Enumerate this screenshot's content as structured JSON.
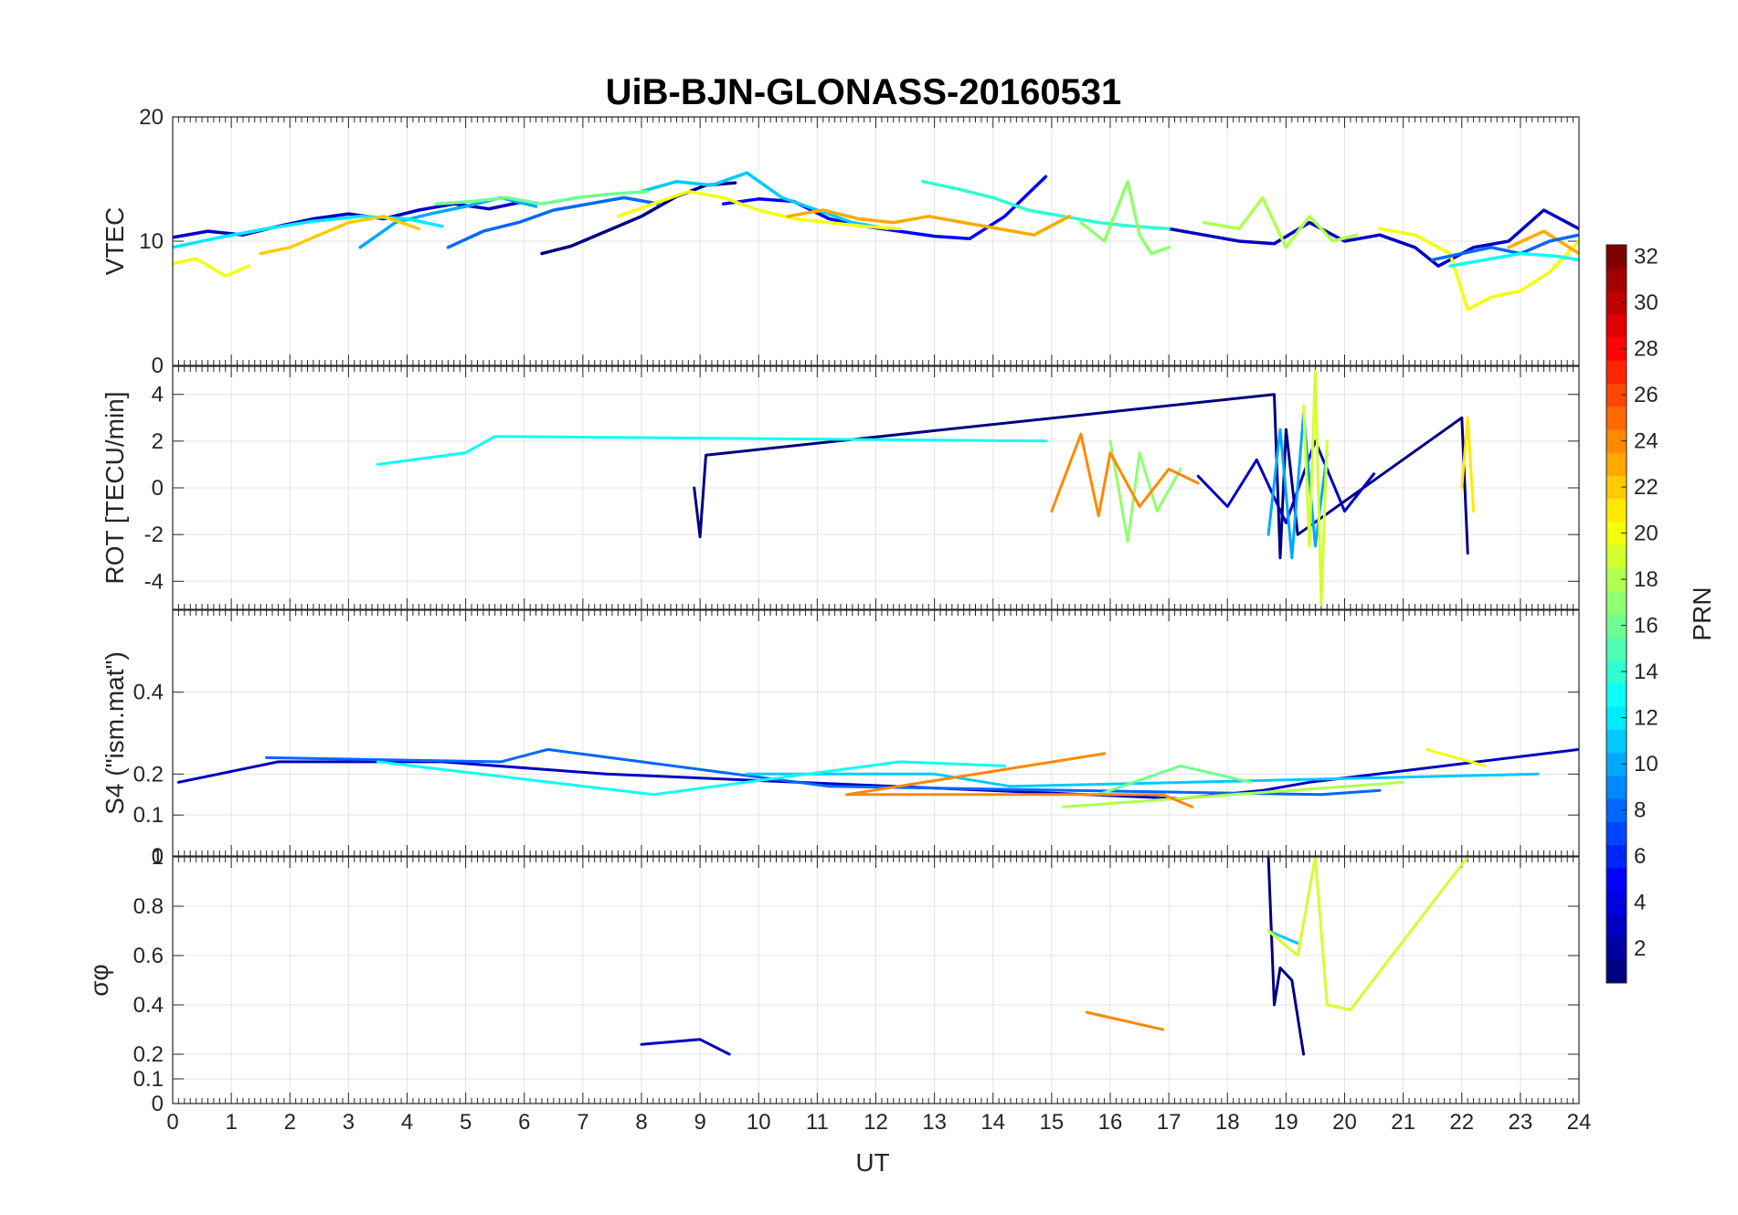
{
  "chart_data": {
    "type": "line",
    "title": "UiB-BJN-GLONASS-20160531",
    "xlabel": "UT",
    "xlim": [
      0,
      24
    ],
    "xticks": [
      "0",
      "1",
      "2",
      "3",
      "4",
      "5",
      "6",
      "7",
      "8",
      "9",
      "10",
      "11",
      "12",
      "13",
      "14",
      "15",
      "16",
      "17",
      "18",
      "19",
      "20",
      "21",
      "22",
      "23",
      "24"
    ],
    "grid": true,
    "panels": [
      {
        "ylabel": "VTEC",
        "ylim": [
          0,
          20
        ],
        "yticks": [
          "0",
          "10",
          "20"
        ],
        "series": [
          {
            "prn": 1,
            "x": [
              6.3,
              6.8,
              7.4,
              8.0,
              8.6,
              9.1,
              9.6
            ],
            "y": [
              9.0,
              9.6,
              10.8,
              12.0,
              13.6,
              14.5,
              14.7
            ]
          },
          {
            "prn": 3,
            "x": [
              0,
              0.6,
              1.2,
              1.8,
              2.4,
              3.0,
              3.6,
              4.2,
              4.8,
              5.4,
              6.0
            ],
            "y": [
              10.3,
              10.8,
              10.5,
              11.2,
              11.8,
              12.2,
              11.8,
              12.5,
              13.0,
              12.6,
              13.2
            ]
          },
          {
            "prn": 3,
            "x": [
              17.0,
              17.6,
              18.2,
              18.8,
              19.4,
              20.0,
              20.6,
              21.2,
              21.6,
              22.2,
              22.8,
              23.4,
              24.0
            ],
            "y": [
              11.0,
              10.5,
              10.0,
              9.8,
              11.5,
              10.0,
              10.5,
              9.5,
              8.0,
              9.5,
              10.0,
              12.5,
              11.0
            ]
          },
          {
            "prn": 5,
            "x": [
              9.4,
              10.0,
              10.6,
              11.2,
              11.8,
              12.4,
              13.0,
              13.6,
              14.2,
              14.9
            ],
            "y": [
              13.0,
              13.4,
              13.2,
              11.8,
              11.2,
              10.8,
              10.4,
              10.2,
              12.0,
              15.2
            ]
          },
          {
            "prn": 8,
            "x": [
              4.7,
              5.3,
              5.9,
              6.5,
              7.1,
              7.7,
              8.3
            ],
            "y": [
              9.5,
              10.8,
              11.5,
              12.5,
              13.0,
              13.5,
              13.0
            ]
          },
          {
            "prn": 10,
            "x": [
              3.2,
              3.8,
              4.4,
              5.0,
              5.6,
              6.2
            ],
            "y": [
              9.5,
              11.5,
              12.2,
              12.8,
              13.5,
              12.8
            ]
          },
          {
            "prn": 11,
            "x": [
              8.0,
              8.6,
              9.2,
              9.8,
              10.4,
              11.0,
              11.6,
              12.2
            ],
            "y": [
              14.0,
              14.8,
              14.5,
              15.5,
              13.5,
              12.5,
              11.5,
              11.0
            ]
          },
          {
            "prn": 12,
            "x": [
              0,
              0.8,
              1.6,
              2.4,
              3.2,
              4.0,
              4.6
            ],
            "y": [
              9.5,
              10.3,
              11.0,
              11.6,
              12.0,
              11.8,
              11.2
            ]
          },
          {
            "prn": 14,
            "x": [
              12.8,
              13.4,
              14.0,
              14.6,
              15.2,
              15.8,
              16.4,
              17.0
            ],
            "y": [
              14.8,
              14.2,
              13.5,
              12.5,
              12.0,
              11.5,
              11.2,
              11.0
            ]
          },
          {
            "prn": 16,
            "x": [
              4.5,
              5.1,
              5.7,
              6.3,
              6.9,
              7.5,
              8.1
            ],
            "y": [
              13.0,
              13.2,
              13.5,
              13.0,
              13.5,
              13.8,
              14.0
            ]
          },
          {
            "prn": 17,
            "x": [
              15.5,
              15.9,
              16.3,
              16.5,
              16.7,
              17.0
            ],
            "y": [
              11.5,
              10.0,
              14.8,
              10.5,
              9.0,
              9.5
            ]
          },
          {
            "prn": 18,
            "x": [
              17.6,
              18.2,
              18.6,
              19.0,
              19.4,
              19.8,
              20.2
            ],
            "y": [
              11.5,
              11.0,
              13.5,
              9.5,
              12.0,
              10.0,
              10.5
            ]
          },
          {
            "prn": 20,
            "x": [
              0,
              0.4,
              0.9,
              1.3
            ],
            "y": [
              8.2,
              8.6,
              7.2,
              8.0
            ]
          },
          {
            "prn": 20,
            "x": [
              7.6,
              8.2,
              8.8,
              9.4,
              10.0,
              10.6,
              11.2,
              11.8,
              12.4
            ],
            "y": [
              12.0,
              13.0,
              14.0,
              13.5,
              12.5,
              11.8,
              11.5,
              11.2,
              11.0
            ]
          },
          {
            "prn": 20,
            "x": [
              20.6,
              21.2,
              21.8,
              22.1,
              22.5,
              23.0,
              23.5,
              24.0
            ],
            "y": [
              11.0,
              10.5,
              9.0,
              4.5,
              5.5,
              6.0,
              7.5,
              10.0
            ]
          },
          {
            "prn": 22,
            "x": [
              1.5,
              2.0,
              2.5,
              3.0,
              3.6,
              4.2
            ],
            "y": [
              9.0,
              9.5,
              10.5,
              11.5,
              12.0,
              11.0
            ]
          },
          {
            "prn": 23,
            "x": [
              10.5,
              11.1,
              11.7,
              12.3,
              12.9,
              13.5,
              14.1,
              14.7,
              15.3
            ],
            "y": [
              12.0,
              12.5,
              11.8,
              11.5,
              12.0,
              11.5,
              11.0,
              10.5,
              12.0
            ]
          },
          {
            "prn": 23,
            "x": [
              22.8,
              23.4,
              24.0
            ],
            "y": [
              9.5,
              10.8,
              9.0
            ]
          },
          {
            "prn": 8,
            "x": [
              21.5,
              22.0,
              22.5,
              23.0,
              23.5,
              24.0
            ],
            "y": [
              8.5,
              9.0,
              9.5,
              9.0,
              10.0,
              10.5
            ]
          },
          {
            "prn": 13,
            "x": [
              21.8,
              22.4,
              23.0,
              23.6,
              24.0
            ],
            "y": [
              8.0,
              8.5,
              9.0,
              8.8,
              8.5
            ]
          }
        ]
      },
      {
        "ylabel": "ROT [TECU/min]",
        "ylim": [
          -5.2,
          5.2
        ],
        "yticks": [
          "-4",
          "-2",
          "0",
          "2",
          "4"
        ],
        "series": [
          {
            "prn": 1,
            "x": [
              8.9,
              9.0,
              9.1,
              18.8,
              18.9,
              19.0,
              19.2,
              22.0,
              22.1
            ],
            "y": [
              0,
              -2.1,
              1.4,
              4.0,
              -3.0,
              2.5,
              -2.0,
              3.0,
              -2.8
            ]
          },
          {
            "prn": 3,
            "x": [
              17.5,
              18.0,
              18.5,
              19.0,
              19.5,
              20.0,
              20.5
            ],
            "y": [
              0.5,
              -0.8,
              1.2,
              -1.5,
              2.0,
              -1.0,
              0.6
            ]
          },
          {
            "prn": 10,
            "x": [
              18.7,
              18.9,
              19.1,
              19.3,
              19.5,
              19.7
            ],
            "y": [
              -2.0,
              2.5,
              -3.0,
              3.2,
              -2.5,
              1.5
            ]
          },
          {
            "prn": 13,
            "x": [
              3.5,
              5.0,
              5.5,
              14.9
            ],
            "y": [
              1.0,
              1.5,
              2.2,
              2.0
            ]
          },
          {
            "prn": 17,
            "x": [
              16.0,
              16.3,
              16.5,
              16.8,
              17.2
            ],
            "y": [
              2.0,
              -2.3,
              1.5,
              -1.0,
              0.8
            ]
          },
          {
            "prn": 19,
            "x": [
              19.3,
              19.4,
              19.5,
              19.6,
              19.7
            ],
            "y": [
              3.5,
              -2.5,
              5.0,
              -5.0,
              2.0
            ]
          },
          {
            "prn": 21,
            "x": [
              22.0,
              22.1,
              22.2
            ],
            "y": [
              0.0,
              3.0,
              -1.0
            ]
          },
          {
            "prn": 24,
            "x": [
              15.0,
              15.5,
              15.8,
              16.0,
              16.5,
              17.0,
              17.5
            ],
            "y": [
              -1.0,
              2.3,
              -1.2,
              1.5,
              -0.8,
              0.8,
              0.2
            ]
          }
        ]
      },
      {
        "ylabel": "S4 (\"ism.mat\")",
        "ylim": [
          0,
          0.6
        ],
        "yticks": [
          "0",
          "0.1",
          "0.2",
          "0.4"
        ],
        "series": [
          {
            "prn": 3,
            "x": [
              0.1,
              1.8,
              4.6,
              7.4,
              17.2,
              18.6,
              19.4,
              24.0
            ],
            "y": [
              0.18,
              0.23,
              0.23,
              0.2,
              0.14,
              0.16,
              0.18,
              0.26
            ]
          },
          {
            "prn": 8,
            "x": [
              1.6,
              5.6,
              6.4,
              11.2,
              19.6,
              20.6
            ],
            "y": [
              0.24,
              0.23,
              0.26,
              0.17,
              0.15,
              0.16
            ]
          },
          {
            "prn": 11,
            "x": [
              9.8,
              13.0,
              14.3,
              23.3
            ],
            "y": [
              0.2,
              0.2,
              0.17,
              0.2
            ]
          },
          {
            "prn": 13,
            "x": [
              3.5,
              8.2,
              12.4,
              14.2
            ],
            "y": [
              0.23,
              0.15,
              0.23,
              0.22
            ]
          },
          {
            "prn": 16,
            "x": [
              15.8,
              17.2,
              18.4
            ],
            "y": [
              0.15,
              0.22,
              0.18
            ]
          },
          {
            "prn": 18,
            "x": [
              15.2,
              21.0
            ],
            "y": [
              0.12,
              0.18
            ]
          },
          {
            "prn": 20,
            "x": [
              21.4,
              22.4
            ],
            "y": [
              0.26,
              0.22
            ]
          },
          {
            "prn": 24,
            "x": [
              15.9,
              11.5,
              16.9,
              17.4
            ],
            "y": [
              0.25,
              0.15,
              0.15,
              0.12
            ]
          }
        ]
      },
      {
        "ylabel": "σφ",
        "ylim": [
          0,
          1
        ],
        "yticks": [
          "0",
          "0.1",
          "0.2",
          "0.4",
          "0.6",
          "0.8",
          "1"
        ],
        "series": [
          {
            "prn": 1,
            "x": [
              18.7,
              18.8,
              18.9,
              19.1,
              19.3
            ],
            "y": [
              1.0,
              0.4,
              0.55,
              0.5,
              0.2
            ]
          },
          {
            "prn": 11,
            "x": [
              18.7,
              19.2
            ],
            "y": [
              0.7,
              0.65
            ]
          },
          {
            "prn": 19,
            "x": [
              18.7,
              19.2,
              19.5,
              19.7,
              20.1,
              22.1
            ],
            "y": [
              0.7,
              0.6,
              1.0,
              0.4,
              0.38,
              1.0
            ]
          },
          {
            "prn": 24,
            "x": [
              15.6,
              16.9
            ],
            "y": [
              0.37,
              0.3
            ]
          },
          {
            "prn": 3,
            "x": [
              8.0,
              8.5,
              9.0,
              9.5
            ],
            "y": [
              0.24,
              0.25,
              0.26,
              0.2
            ]
          }
        ]
      }
    ],
    "colorbar": {
      "label": "PRN",
      "colormap": "jet",
      "range": [
        1,
        32
      ],
      "ticks": [
        "2",
        "4",
        "6",
        "8",
        "10",
        "12",
        "14",
        "16",
        "18",
        "20",
        "22",
        "24",
        "26",
        "28",
        "30",
        "32"
      ]
    }
  }
}
